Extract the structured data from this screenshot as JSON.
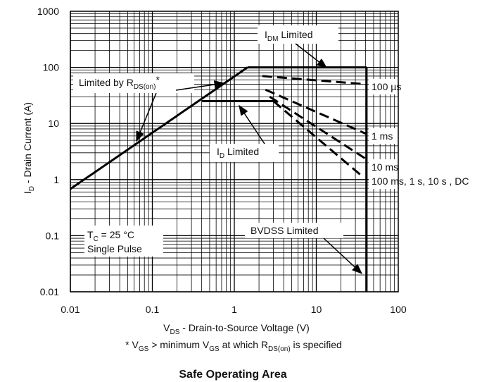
{
  "chart_data": {
    "type": "line",
    "title": "Safe Operating Area",
    "xscale": "log",
    "yscale": "log",
    "xlim": [
      0.01,
      100
    ],
    "ylim": [
      0.01,
      1000
    ],
    "grid": true,
    "x_ticks": [
      "0.01",
      "0.1",
      "1",
      "10",
      "100"
    ],
    "y_ticks": [
      "0.01",
      "0.1",
      "1",
      "10",
      "100",
      "1000"
    ],
    "xlabel": {
      "main": "V",
      "sub": "DS",
      "rest": " - Drain-to-Source Voltage (V)"
    },
    "ylabel": {
      "main": "I",
      "sub": "D",
      "rest": " - Drain Current (A)"
    },
    "footnote": {
      "p1": "* V",
      "s1": "GS",
      "p2": " > minimum V",
      "s2": "GS",
      "p3": " at which R",
      "s3": "DS(on)",
      "p4": " is specified"
    },
    "boundaries": [
      {
        "name": "RDS(on) limit",
        "x": [
          0.01,
          1.45
        ],
        "y": [
          0.68,
          100
        ]
      },
      {
        "name": "IDM limit",
        "x": [
          1.45,
          41
        ],
        "y": [
          100,
          100
        ]
      },
      {
        "name": "BVDSS limit",
        "x": [
          41,
          41
        ],
        "y": [
          100,
          0.01
        ]
      },
      {
        "name": "ID limit",
        "x": [
          0.4,
          3
        ],
        "y": [
          25,
          25
        ]
      }
    ],
    "pulse_curves": [
      {
        "name": "100 µs",
        "x": [
          2.2,
          41
        ],
        "y": [
          70,
          50
        ]
      },
      {
        "name": "1 ms",
        "x": [
          2.4,
          41
        ],
        "y": [
          40,
          6.5
        ]
      },
      {
        "name": "10 ms",
        "x": [
          2.7,
          41
        ],
        "y": [
          30,
          2.3
        ]
      },
      {
        "name": "100 ms, 1 s, 10 s , DC",
        "x": [
          3.0,
          35
        ],
        "y": [
          25,
          1.2
        ]
      }
    ],
    "annotations": {
      "idm": {
        "main": "I",
        "sub": "DM",
        "rest": " Limited"
      },
      "rds": {
        "main": "Limited by R",
        "sub": "DS(on)",
        "rest": "*"
      },
      "id": {
        "main": "I",
        "sub": "D",
        "rest": " Limited"
      },
      "bvdss": "BVDSS Limited",
      "tc": {
        "main": "T",
        "sub": "C",
        "rest": " = 25 °C"
      },
      "single": "Single Pulse",
      "p100us": "100 µs",
      "p1ms": "1 ms",
      "p10ms": "10 ms",
      "pdc": "100 ms, 1 s, 10 s , DC"
    },
    "colors": {
      "line": "#000000",
      "grid": "#000000",
      "background": "#ffffff"
    }
  }
}
